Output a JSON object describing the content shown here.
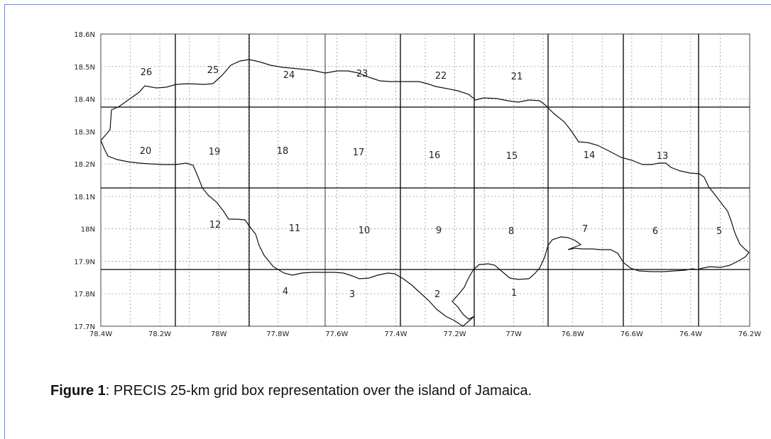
{
  "map": {
    "lon_ticks": [
      "78.4W",
      "78.2W",
      "78W",
      "77.8W",
      "77.6W",
      "77.4W",
      "77.2W",
      "77W",
      "76.8W",
      "76.6W",
      "76.4W",
      "76.2W"
    ],
    "lat_ticks": [
      "17.7N",
      "17.8N",
      "17.9N",
      "18N",
      "18.1N",
      "18.2N",
      "18.3N",
      "18.4N",
      "18.5N",
      "18.6N"
    ],
    "grid_labels": [
      "1",
      "2",
      "3",
      "4",
      "5",
      "6",
      "7",
      "8",
      "9",
      "10",
      "11",
      "12",
      "13",
      "14",
      "15",
      "16",
      "17",
      "18",
      "19",
      "20",
      "21",
      "22",
      "23",
      "24",
      "25",
      "26"
    ],
    "coastline_color": "#111111",
    "grid_color": "#000000"
  },
  "caption": {
    "label": "Figure 1",
    "text": ": PRECIS 25-km grid box representation over the island of Jamaica."
  }
}
